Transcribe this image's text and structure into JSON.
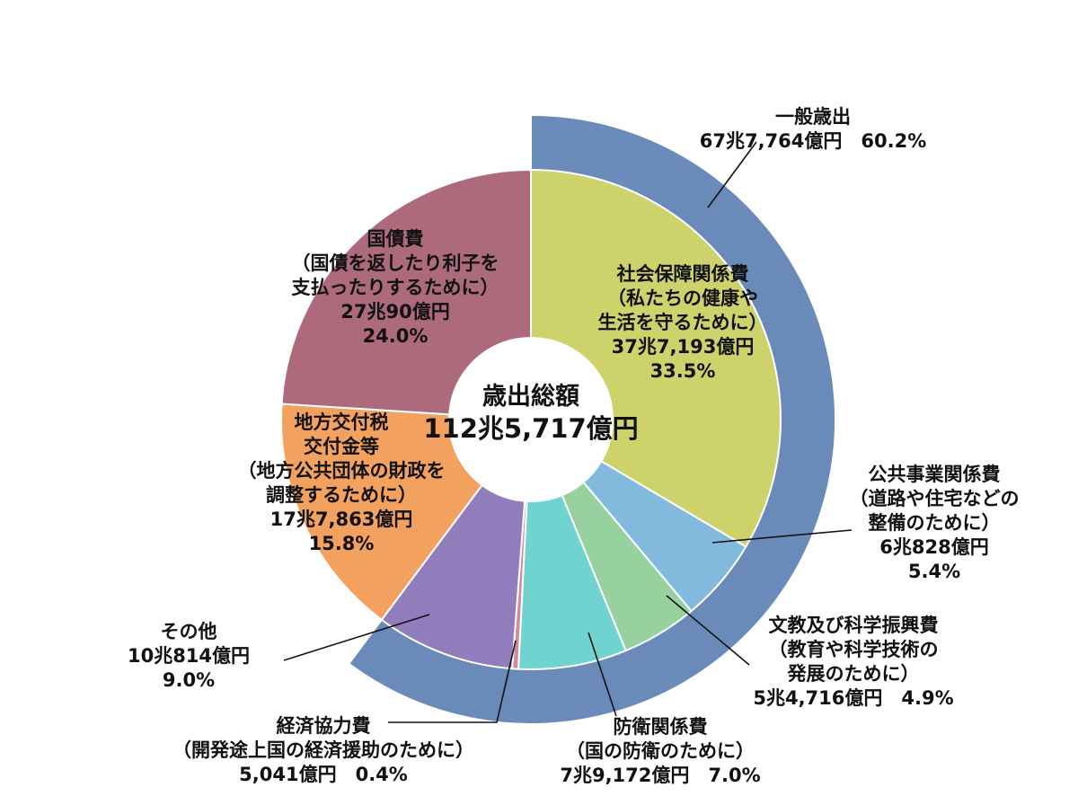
{
  "chart_data": {
    "type": "pie",
    "center_label": {
      "title": "歳出総額",
      "total": "112兆5,717億円"
    },
    "slices": [
      {
        "id": "social",
        "lines": [
          "社会保障関係費",
          "（私たちの健康や",
          "生活を守るために）",
          "37兆7,193億円",
          "33.5%"
        ],
        "value": 33.5,
        "color": "#cdd26a"
      },
      {
        "id": "public-works",
        "lines": [
          "公共事業関係費",
          "（道路や住宅などの",
          "整備のために）",
          "6兆828億円",
          "5.4%"
        ],
        "value": 5.4,
        "color": "#82bade"
      },
      {
        "id": "education",
        "lines": [
          "文教及び科学振興費",
          "（教育や科学技術の",
          "発展のために）",
          "5兆4,716億円　4.9%"
        ],
        "value": 4.9,
        "color": "#98d1a0"
      },
      {
        "id": "defense",
        "lines": [
          "防衛関係費",
          "（国の防衛のために）",
          "7兆9,172億円　7.0%"
        ],
        "value": 7.0,
        "color": "#6fd3cf"
      },
      {
        "id": "econ-coop",
        "lines": [
          "経済協力費",
          "（開発途上国の経済援助のために）",
          "5,041億円　0.4%"
        ],
        "value": 0.4,
        "color": "#d48a9e"
      },
      {
        "id": "other",
        "lines": [
          "その他",
          "10兆814億円",
          "9.0%"
        ],
        "value": 9.0,
        "color": "#917cbc"
      },
      {
        "id": "local",
        "lines": [
          "地方交付税",
          "交付金等",
          "（地方公共団体の財政を",
          "調整するために）",
          "17兆7,863億円",
          "15.8%"
        ],
        "value": 15.8,
        "color": "#f2a25e"
      },
      {
        "id": "debt",
        "lines": [
          "国債費",
          "（国債を返したり利子を",
          "支払ったりするために）",
          "27兆90億円",
          "24.0%"
        ],
        "value": 24.0,
        "color": "#ac6a7c"
      }
    ],
    "outer_ring": {
      "lines": [
        "一般歳出",
        "67兆7,764億円　60.2%"
      ],
      "value": 60.2,
      "color": "#6a8bba"
    }
  }
}
